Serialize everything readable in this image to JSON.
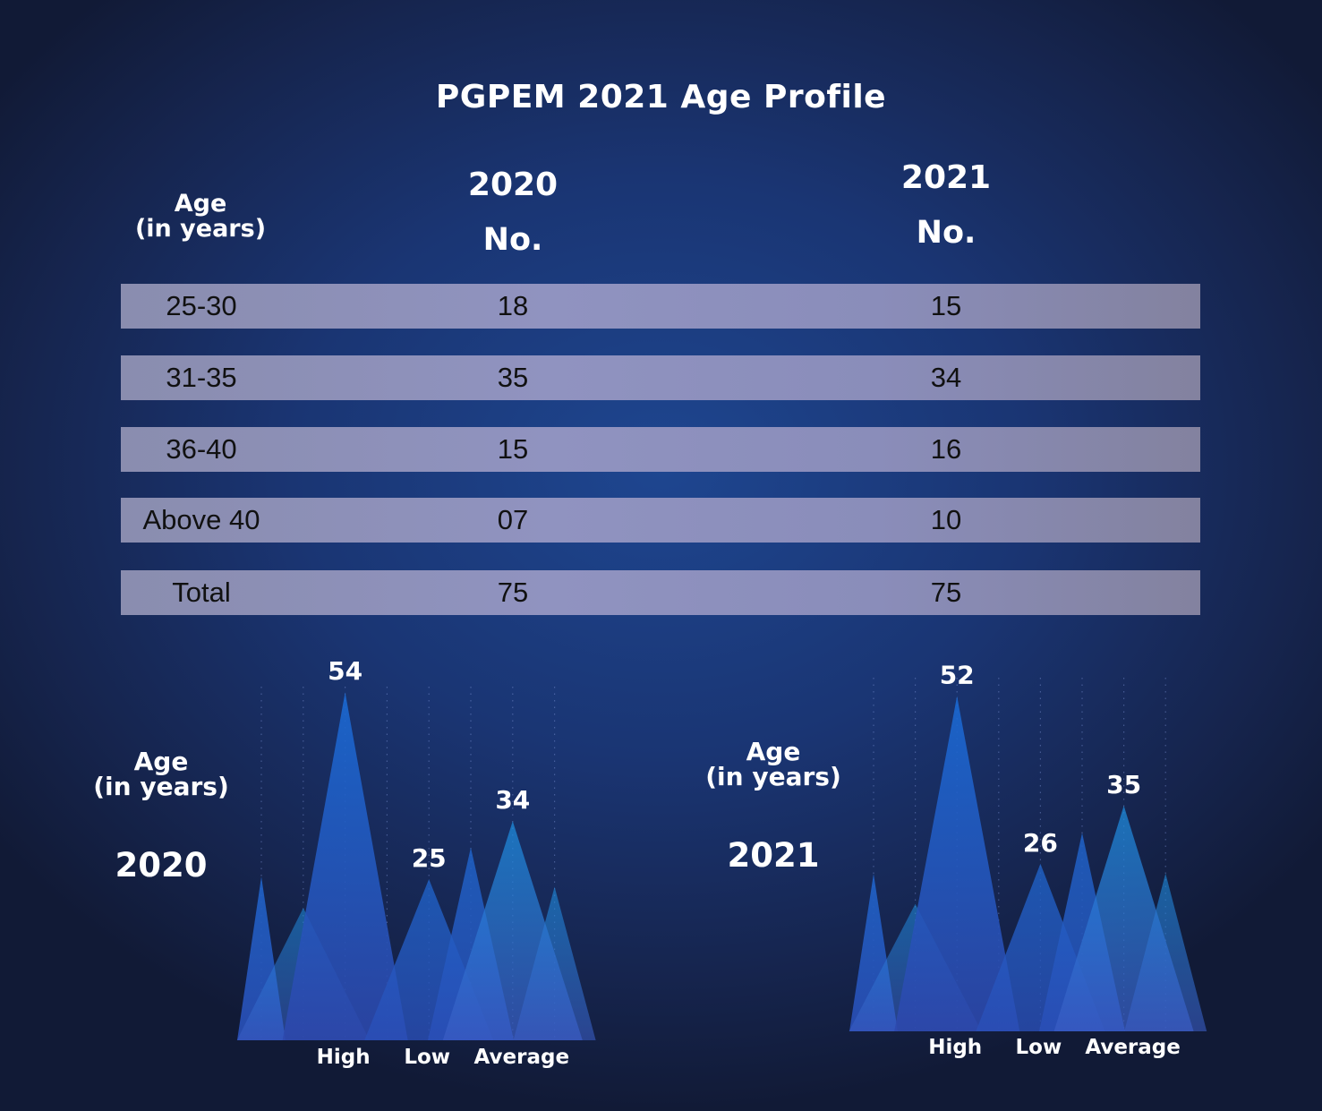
{
  "title": "PGPEM 2021 Age Profile",
  "table": {
    "age_header_line1": "Age",
    "age_header_line2": "(in years)",
    "col_2020_year": "2020",
    "col_2020_sub": "No.",
    "col_2021_year": "2021",
    "col_2021_sub": "No.",
    "rows": [
      {
        "age": "25-30",
        "v2020": "18",
        "v2021": "15"
      },
      {
        "age": "31-35",
        "v2020": "35",
        "v2021": "34"
      },
      {
        "age": "36-40",
        "v2020": "15",
        "v2021": "16"
      },
      {
        "age": "Above 40",
        "v2020": "07",
        "v2021": "10"
      },
      {
        "age": "Total",
        "v2020": "75",
        "v2021": "75"
      }
    ]
  },
  "chart_data": [
    {
      "type": "area",
      "title": "2020",
      "label_line1": "Age",
      "label_line2": "(in years)",
      "categories": [
        "High",
        "Low",
        "Average"
      ],
      "values": [
        54,
        25,
        34
      ]
    },
    {
      "type": "area",
      "title": "2021",
      "label_line1": "Age",
      "label_line2": "(in years)",
      "categories": [
        "High",
        "Low",
        "Average"
      ],
      "values": [
        52,
        26,
        35
      ]
    }
  ]
}
